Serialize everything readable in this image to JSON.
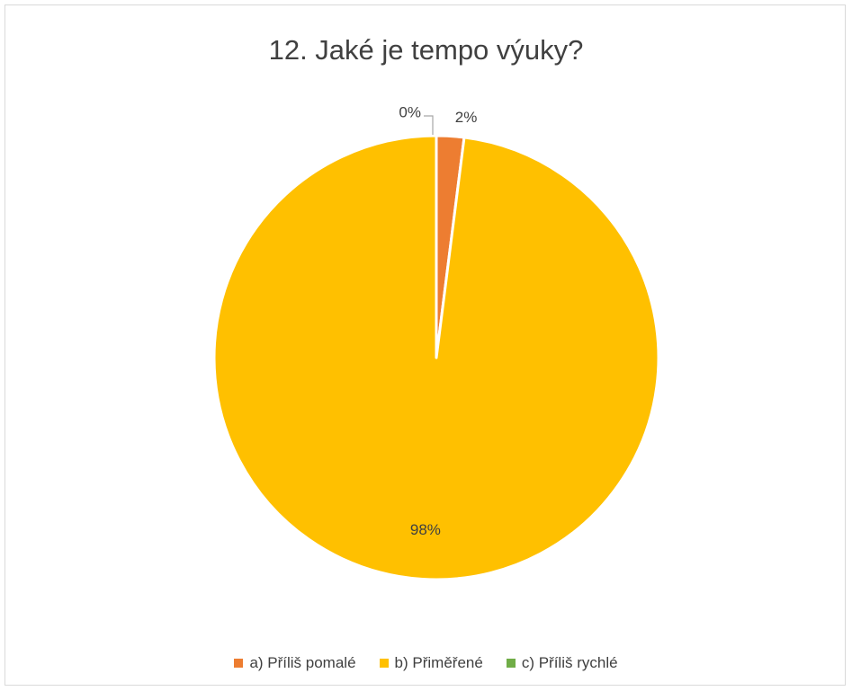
{
  "chart_data": {
    "type": "pie",
    "title": "12. Jaké je tempo výuky?",
    "categories": [
      "a) Příliš pomalé",
      "b) Přiměřené",
      "c) Příliš rychlé"
    ],
    "values": [
      2,
      98,
      0
    ],
    "data_labels": [
      "2%",
      "98%",
      "0%"
    ],
    "colors": [
      "#ED7D31",
      "#FFC000",
      "#70AD47"
    ],
    "legend_position": "bottom"
  }
}
